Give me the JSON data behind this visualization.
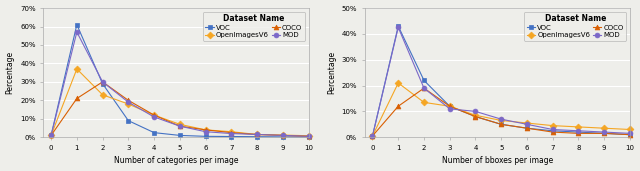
{
  "left": {
    "xlabel": "Number of categories per image",
    "ylabel": "Percentage",
    "xlim": [
      -0.3,
      10
    ],
    "ylim": [
      0,
      70
    ],
    "yticks": [
      0,
      10,
      20,
      30,
      40,
      50,
      60,
      70
    ],
    "ytick_labels": [
      "0%",
      "10%",
      "20%",
      "30%",
      "40%",
      "50%",
      "60%",
      "70%"
    ],
    "xticks": [
      0,
      1,
      2,
      3,
      4,
      5,
      6,
      7,
      8,
      9,
      10
    ],
    "series": {
      "VOC": {
        "x": [
          0,
          1,
          2,
          3,
          4,
          5,
          6,
          7,
          8,
          9,
          10
        ],
        "y": [
          1.0,
          61.0,
          29.0,
          9.0,
          2.5,
          1.0,
          0.5,
          0.4,
          0.3,
          0.2,
          0.1
        ],
        "color": "#4472c4",
        "marker": "s",
        "markersize": 3.5
      },
      "OpenImagesV6": {
        "x": [
          0,
          1,
          2,
          3,
          4,
          5,
          6,
          7,
          8,
          9,
          10
        ],
        "y": [
          1.0,
          37.0,
          23.0,
          18.0,
          12.0,
          7.0,
          4.0,
          3.0,
          1.5,
          1.2,
          0.8
        ],
        "color": "#f5a623",
        "marker": "D",
        "markersize": 3.5
      },
      "COCO": {
        "x": [
          0,
          1,
          2,
          3,
          4,
          5,
          6,
          7,
          8,
          9,
          10
        ],
        "y": [
          1.0,
          21.0,
          30.0,
          20.0,
          12.0,
          6.0,
          4.0,
          2.5,
          1.5,
          1.0,
          0.5
        ],
        "color": "#d95f02",
        "marker": "^",
        "markersize": 3.5
      },
      "MOD": {
        "x": [
          0,
          1,
          2,
          3,
          4,
          5,
          6,
          7,
          8,
          9,
          10
        ],
        "y": [
          1.0,
          57.0,
          30.0,
          19.0,
          11.0,
          6.0,
          3.0,
          2.0,
          1.5,
          1.0,
          0.5
        ],
        "color": "#7b68c8",
        "marker": "o",
        "markersize": 3.5
      }
    },
    "legend_title": "Dataset Name",
    "legend_order": [
      "VOC",
      "OpenImagesV6",
      "COCO",
      "MOD"
    ]
  },
  "right": {
    "xlabel": "Number of bboxes per image",
    "ylabel": "Percentage",
    "xlim": [
      -0.3,
      10
    ],
    "ylim": [
      0,
      50
    ],
    "yticks": [
      0,
      10,
      20,
      30,
      40,
      50
    ],
    "ytick_labels": [
      "0%",
      "10%",
      "20%",
      "30%",
      "40%",
      "50%"
    ],
    "xticks": [
      0,
      1,
      2,
      3,
      4,
      5,
      6,
      7,
      8,
      9,
      10
    ],
    "series": {
      "VOC": {
        "x": [
          0,
          1,
          2,
          3,
          4,
          5,
          6,
          7,
          8,
          9,
          10
        ],
        "y": [
          0.5,
          43.0,
          22.0,
          12.0,
          8.0,
          5.0,
          3.5,
          2.5,
          2.0,
          1.5,
          1.0
        ],
        "color": "#4472c4",
        "marker": "s",
        "markersize": 3.5
      },
      "OpenImagesV6": {
        "x": [
          0,
          1,
          2,
          3,
          4,
          5,
          6,
          7,
          8,
          9,
          10
        ],
        "y": [
          0.5,
          21.0,
          13.5,
          12.0,
          8.5,
          6.5,
          5.5,
          4.5,
          4.0,
          3.5,
          3.0
        ],
        "color": "#f5a623",
        "marker": "D",
        "markersize": 3.5
      },
      "COCO": {
        "x": [
          0,
          1,
          2,
          3,
          4,
          5,
          6,
          7,
          8,
          9,
          10
        ],
        "y": [
          0.5,
          12.0,
          19.0,
          12.0,
          8.0,
          5.0,
          3.5,
          2.0,
          1.5,
          1.5,
          1.0
        ],
        "color": "#d95f02",
        "marker": "^",
        "markersize": 3.5
      },
      "MOD": {
        "x": [
          0,
          1,
          2,
          3,
          4,
          5,
          6,
          7,
          8,
          9,
          10
        ],
        "y": [
          0.5,
          42.5,
          19.0,
          11.0,
          10.0,
          7.0,
          5.0,
          3.0,
          2.5,
          2.0,
          1.5
        ],
        "color": "#7b68c8",
        "marker": "o",
        "markersize": 3.5
      }
    },
    "legend_title": "Dataset Name",
    "legend_order": [
      "VOC",
      "OpenImagesV6",
      "COCO",
      "MOD"
    ]
  },
  "fig_width": 6.4,
  "fig_height": 1.71,
  "dpi": 100,
  "background_color": "#eeeeea",
  "grid_color": "#ffffff",
  "font_size": 5.5,
  "tick_fontsize": 5.0,
  "legend_font_size": 5.0,
  "legend_title_font_size": 5.5
}
